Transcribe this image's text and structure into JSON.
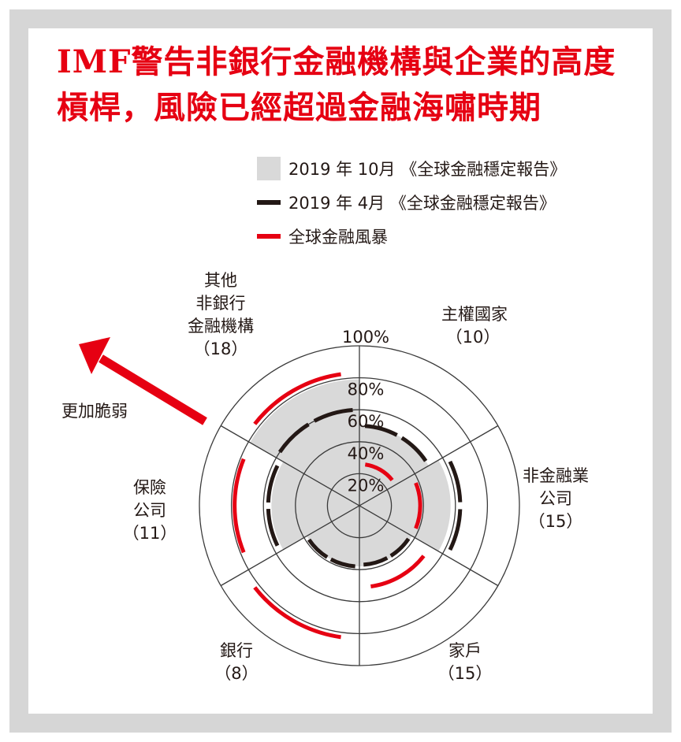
{
  "chart_data": {
    "type": "polar-area",
    "title": "IMF警告非銀行金融機構與企業的高度槓桿，風險已經超過金融海嘯時期",
    "rlim": [
      0,
      100
    ],
    "r_ticks": [
      "20%",
      "40%",
      "60%",
      "80%",
      "100%"
    ],
    "categories": [
      {
        "name": "主權國家",
        "count": "（10）"
      },
      {
        "name": "非金融業\n公司",
        "count": "（15）"
      },
      {
        "name": "家戶",
        "count": "（15）"
      },
      {
        "name": "銀行",
        "count": "（8）"
      },
      {
        "name": "保險\n公司",
        "count": "（11）"
      },
      {
        "name": "其他\n非銀行\n金融機構",
        "count": "（18）"
      }
    ],
    "series": [
      {
        "name": "2019 年 10月 《全球金融穩定報告》",
        "style": "fill",
        "color": "#d9d9d9",
        "values": [
          50,
          57,
          38,
          38,
          55,
          79
        ]
      },
      {
        "name": "2019 年 4月 《全球金融穩定報告》",
        "style": "arc",
        "color": "#231815",
        "values": [
          50,
          63,
          37,
          38,
          57,
          60
        ]
      },
      {
        "name": "全球金融風暴",
        "style": "arc",
        "color": "#e60012",
        "values": [
          26,
          38,
          51,
          83,
          78,
          83
        ]
      }
    ],
    "annotation": "更加脆弱"
  }
}
